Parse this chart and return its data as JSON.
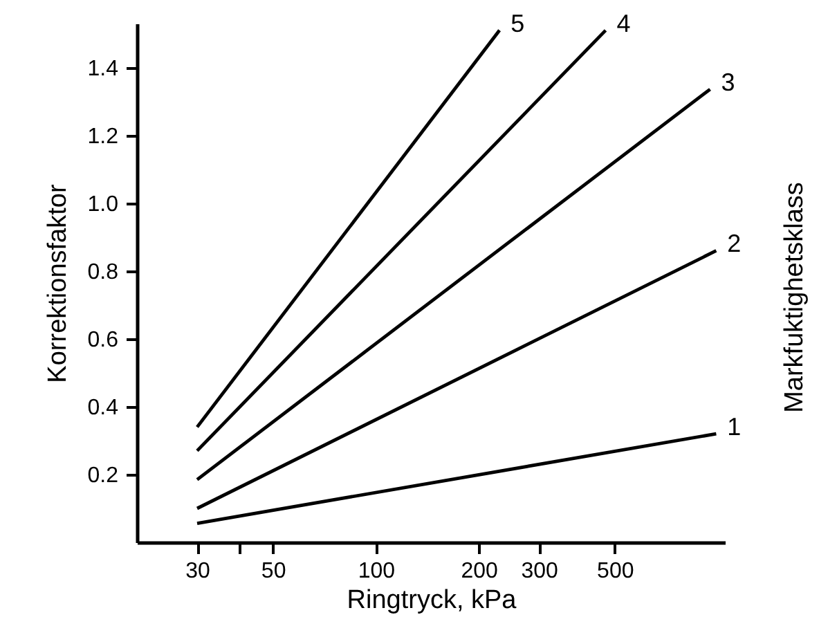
{
  "chart_data": {
    "type": "line",
    "xlabel": "Ringtryck, kPa",
    "ylabel": "Korrektionsfaktor",
    "annotations": [
      "Markfuktighetsklass"
    ],
    "log": "x",
    "xlim": [
      20,
      1050
    ],
    "ylim": [
      0,
      1.53
    ],
    "xticks": [
      30,
      {
        "value": 40,
        "label": null
      },
      50,
      100,
      200,
      300,
      500
    ],
    "yticks": [
      0.2,
      0.4,
      0.6,
      0.8,
      {
        "value": 1,
        "label": "1.0"
      },
      1.2,
      1.4
    ],
    "grid": false,
    "marker": "none",
    "line_style": "solid",
    "series": [
      {
        "name": "1",
        "color": "#000000",
        "x": [
          30,
          990
        ],
        "values": [
          0.056,
          0.32
        ]
      },
      {
        "name": "2",
        "color": "#000000",
        "x": [
          30,
          990
        ],
        "values": [
          0.1,
          0.86
        ]
      },
      {
        "name": "3",
        "color": "#000000",
        "x": [
          30,
          950
        ],
        "values": [
          0.185,
          1.336
        ]
      },
      {
        "name": "4",
        "color": "#000000",
        "x": [
          30,
          470
        ],
        "values": [
          0.27,
          1.51
        ]
      },
      {
        "name": "5",
        "color": "#000000",
        "x": [
          30,
          230
        ],
        "values": [
          0.34,
          1.51
        ]
      }
    ]
  }
}
